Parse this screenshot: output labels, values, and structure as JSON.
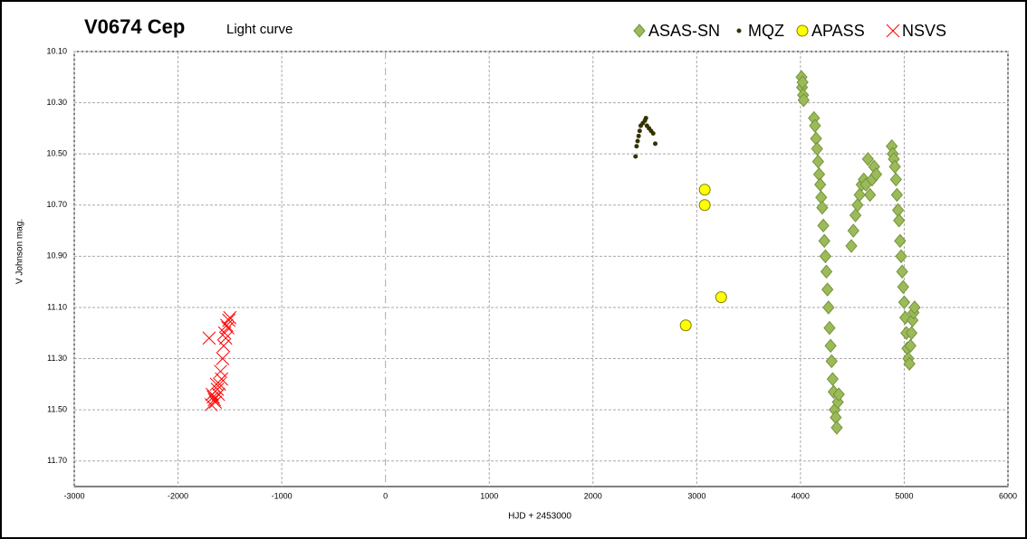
{
  "chart_data": {
    "type": "scatter",
    "title": "V0674 Cep",
    "subtitle": "Light curve",
    "x_label": "HJD + 2453000",
    "y_label": "V Johnson mag.",
    "xlim": [
      -3000,
      6000
    ],
    "xticks": [
      -3000,
      -2000,
      -1000,
      0,
      1000,
      2000,
      3000,
      4000,
      5000,
      6000
    ],
    "ylim": [
      10.1,
      11.8
    ],
    "y_inverted": true,
    "yticks": [
      {
        "value": 10.1,
        "label": "10.10"
      },
      {
        "value": 10.3,
        "label": "10.30"
      },
      {
        "value": 10.5,
        "label": "10.50"
      },
      {
        "value": 10.7,
        "label": "10.70"
      },
      {
        "value": 10.9,
        "label": "10.90"
      },
      {
        "value": 11.1,
        "label": "11.10"
      },
      {
        "value": 11.3,
        "label": "11.30"
      },
      {
        "value": 11.5,
        "label": "11.50"
      },
      {
        "value": 11.7,
        "label": "11.70"
      }
    ],
    "grid": true,
    "legend": "top-right",
    "series": [
      {
        "name": "ASAS-SN",
        "color": "#9bbb59",
        "marker": "diamond",
        "x": [
          4010,
          4015,
          4020,
          4025,
          4030,
          4130,
          4140,
          4150,
          4160,
          4170,
          4180,
          4190,
          4200,
          4210,
          4220,
          4230,
          4240,
          4250,
          4260,
          4270,
          4280,
          4290,
          4300,
          4310,
          4320,
          4330,
          4340,
          4350,
          4360,
          4370,
          4490,
          4510,
          4530,
          4550,
          4570,
          4590,
          4610,
          4630,
          4650,
          4670,
          4690,
          4710,
          4730,
          4880,
          4890,
          4900,
          4910,
          4920,
          4930,
          4940,
          4950,
          4960,
          4970,
          4980,
          4990,
          5000,
          5010,
          5020,
          5030,
          5040,
          5050,
          5060,
          5070,
          5080,
          5090,
          5100
        ],
        "values": [
          10.2,
          10.24,
          10.22,
          10.27,
          10.29,
          10.36,
          10.39,
          10.44,
          10.48,
          10.53,
          10.58,
          10.62,
          10.67,
          10.71,
          10.78,
          10.84,
          10.9,
          10.96,
          11.03,
          11.1,
          11.18,
          11.25,
          11.31,
          11.38,
          11.43,
          11.5,
          11.53,
          11.57,
          11.47,
          11.44,
          10.86,
          10.8,
          10.74,
          10.7,
          10.66,
          10.62,
          10.6,
          10.62,
          10.52,
          10.66,
          10.6,
          10.55,
          10.58,
          10.47,
          10.5,
          10.52,
          10.55,
          10.6,
          10.66,
          10.72,
          10.76,
          10.84,
          10.9,
          10.96,
          11.02,
          11.08,
          11.14,
          11.2,
          11.26,
          11.3,
          11.32,
          11.25,
          11.2,
          11.15,
          11.12,
          11.1
        ]
      },
      {
        "name": "MQZ",
        "color": "#333300",
        "marker": "dot",
        "x": [
          2410,
          2420,
          2430,
          2440,
          2450,
          2460,
          2480,
          2500,
          2510,
          2520,
          2540,
          2560,
          2580,
          2600
        ],
        "values": [
          10.51,
          10.47,
          10.45,
          10.43,
          10.41,
          10.39,
          10.38,
          10.37,
          10.36,
          10.39,
          10.4,
          10.41,
          10.42,
          10.46
        ]
      },
      {
        "name": "APASS",
        "color": "#ffff00",
        "marker": "circle",
        "x": [
          3077,
          3077,
          2894,
          3235
        ],
        "values": [
          10.64,
          10.7,
          11.17,
          11.06
        ]
      },
      {
        "name": "NSVS",
        "color": "#ff0000",
        "marker": "cross",
        "x": [
          -1700,
          -1680,
          -1670,
          -1660,
          -1650,
          -1640,
          -1630,
          -1620,
          -1610,
          -1600,
          -1590,
          -1580,
          -1570,
          -1560,
          -1550,
          -1540,
          -1530,
          -1520,
          -1510,
          -1500
        ],
        "values": [
          11.22,
          11.48,
          11.44,
          11.45,
          11.46,
          11.47,
          11.4,
          11.42,
          11.44,
          11.4,
          11.35,
          11.38,
          11.3,
          11.25,
          11.2,
          11.22,
          11.17,
          11.18,
          11.15,
          11.14
        ]
      }
    ]
  }
}
